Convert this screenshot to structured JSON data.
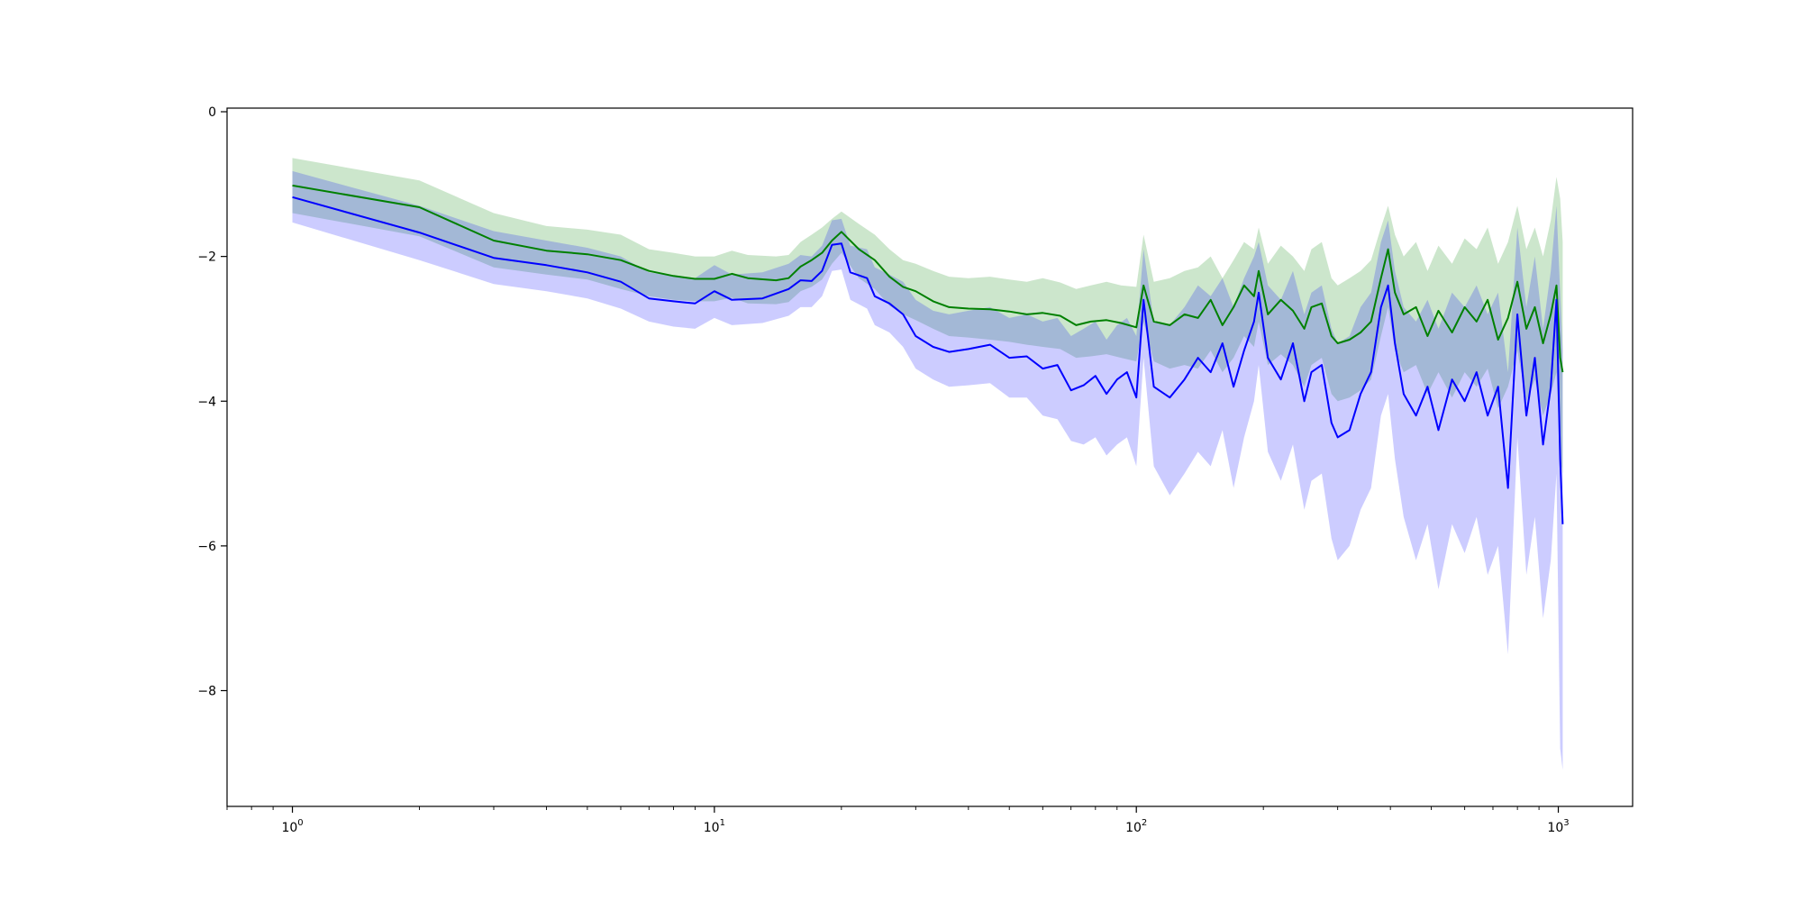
{
  "chart_data": {
    "type": "line",
    "xscale": "log",
    "xlim": [
      0.7,
      1500
    ],
    "ylim": [
      -9.6,
      0.05
    ],
    "grid": false,
    "x_ticks": [
      {
        "value": 1,
        "base": "10",
        "exp": "0"
      },
      {
        "value": 10,
        "base": "10",
        "exp": "1"
      },
      {
        "value": 100,
        "base": "10",
        "exp": "2"
      },
      {
        "value": 1000,
        "base": "10",
        "exp": "3"
      }
    ],
    "y_ticks": [
      {
        "value": 0,
        "label": "0"
      },
      {
        "value": -2,
        "label": "−2"
      },
      {
        "value": -4,
        "label": "−4"
      },
      {
        "value": -6,
        "label": "−6"
      },
      {
        "value": -8,
        "label": "−8"
      }
    ],
    "series": [
      {
        "color": "#008000",
        "band_color": "#008000",
        "band_opacity": 0.2,
        "points": [
          [
            1,
            -1.02,
            -0.64,
            -1.4
          ],
          [
            2,
            -1.32,
            -0.95,
            -1.72
          ],
          [
            3,
            -1.78,
            -1.4,
            -2.15
          ],
          [
            4,
            -1.92,
            -1.58,
            -2.25
          ],
          [
            5,
            -1.97,
            -1.63,
            -2.32
          ],
          [
            6,
            -2.05,
            -1.7,
            -2.45
          ],
          [
            7,
            -2.2,
            -1.9,
            -2.55
          ],
          [
            8,
            -2.27,
            -1.95,
            -2.6
          ],
          [
            9,
            -2.31,
            -2.0,
            -2.62
          ],
          [
            10,
            -2.31,
            -2.0,
            -2.62
          ],
          [
            11,
            -2.24,
            -1.92,
            -2.57
          ],
          [
            12,
            -2.3,
            -1.98,
            -2.65
          ],
          [
            14,
            -2.33,
            -2.0,
            -2.66
          ],
          [
            15,
            -2.3,
            -1.98,
            -2.63
          ],
          [
            16,
            -2.14,
            -1.8,
            -2.48
          ],
          [
            17,
            -2.05,
            -1.7,
            -2.42
          ],
          [
            18,
            -1.95,
            -1.6,
            -2.32
          ],
          [
            19,
            -1.78,
            -1.48,
            -2.1
          ],
          [
            20,
            -1.66,
            -1.38,
            -1.95
          ],
          [
            22,
            -1.9,
            -1.55,
            -2.3
          ],
          [
            24,
            -2.05,
            -1.7,
            -2.45
          ],
          [
            26,
            -2.28,
            -1.9,
            -2.68
          ],
          [
            28,
            -2.42,
            -2.05,
            -2.8
          ],
          [
            30,
            -2.48,
            -2.1,
            -2.88
          ],
          [
            33,
            -2.62,
            -2.2,
            -3.0
          ],
          [
            36,
            -2.7,
            -2.28,
            -3.1
          ],
          [
            40,
            -2.72,
            -2.3,
            -3.12
          ],
          [
            45,
            -2.73,
            -2.28,
            -3.15
          ],
          [
            50,
            -2.76,
            -2.32,
            -3.18
          ],
          [
            55,
            -2.8,
            -2.35,
            -3.22
          ],
          [
            60,
            -2.78,
            -2.3,
            -3.25
          ],
          [
            66,
            -2.82,
            -2.36,
            -3.28
          ],
          [
            72,
            -2.95,
            -2.45,
            -3.4
          ],
          [
            78,
            -2.9,
            -2.4,
            -3.38
          ],
          [
            85,
            -2.88,
            -2.35,
            -3.35
          ],
          [
            92,
            -2.92,
            -2.4,
            -3.4
          ],
          [
            100,
            -2.98,
            -2.42,
            -3.45
          ],
          [
            104,
            -2.4,
            -1.7,
            -2.9
          ],
          [
            110,
            -2.9,
            -2.35,
            -3.45
          ],
          [
            120,
            -2.95,
            -2.3,
            -3.55
          ],
          [
            130,
            -2.8,
            -2.2,
            -3.5
          ],
          [
            140,
            -2.85,
            -2.15,
            -3.55
          ],
          [
            150,
            -2.6,
            -2.0,
            -3.3
          ],
          [
            160,
            -2.95,
            -2.3,
            -3.6
          ],
          [
            170,
            -2.7,
            -2.05,
            -3.4
          ],
          [
            180,
            -2.4,
            -1.8,
            -3.1
          ],
          [
            190,
            -2.55,
            -1.9,
            -3.25
          ],
          [
            195,
            -2.2,
            -1.6,
            -2.9
          ],
          [
            205,
            -2.8,
            -2.1,
            -3.5
          ],
          [
            220,
            -2.6,
            -1.85,
            -3.35
          ],
          [
            235,
            -2.75,
            -2.0,
            -3.5
          ],
          [
            250,
            -3.0,
            -2.2,
            -3.8
          ],
          [
            260,
            -2.7,
            -1.9,
            -3.5
          ],
          [
            275,
            -2.65,
            -1.8,
            -3.4
          ],
          [
            290,
            -3.1,
            -2.3,
            -3.9
          ],
          [
            300,
            -3.2,
            -2.4,
            -4.0
          ],
          [
            320,
            -3.15,
            -2.3,
            -3.95
          ],
          [
            340,
            -3.05,
            -2.2,
            -3.85
          ],
          [
            360,
            -2.9,
            -2.05,
            -3.7
          ],
          [
            380,
            -2.3,
            -1.6,
            -3.1
          ],
          [
            395,
            -1.9,
            -1.3,
            -2.7
          ],
          [
            410,
            -2.5,
            -1.7,
            -3.3
          ],
          [
            430,
            -2.8,
            -2.0,
            -3.6
          ],
          [
            460,
            -2.7,
            -1.8,
            -3.5
          ],
          [
            490,
            -3.1,
            -2.2,
            -3.9
          ],
          [
            520,
            -2.75,
            -1.85,
            -3.6
          ],
          [
            560,
            -3.05,
            -2.1,
            -3.95
          ],
          [
            600,
            -2.7,
            -1.75,
            -3.6
          ],
          [
            640,
            -2.9,
            -1.9,
            -3.8
          ],
          [
            680,
            -2.6,
            -1.6,
            -3.55
          ],
          [
            720,
            -3.15,
            -2.1,
            -4.1
          ],
          [
            760,
            -2.85,
            -1.8,
            -3.8
          ],
          [
            800,
            -2.35,
            -1.3,
            -3.3
          ],
          [
            840,
            -3.0,
            -1.9,
            -4.0
          ],
          [
            880,
            -2.7,
            -1.6,
            -3.7
          ],
          [
            920,
            -3.2,
            -2.0,
            -4.2
          ],
          [
            960,
            -2.8,
            -1.5,
            -3.9
          ],
          [
            990,
            -2.4,
            -0.9,
            -3.6
          ],
          [
            1010,
            -3.4,
            -1.2,
            -4.8
          ],
          [
            1024,
            -3.6,
            -1.8,
            -5.0
          ]
        ]
      },
      {
        "color": "#0000ff",
        "band_color": "#0000ff",
        "band_opacity": 0.2,
        "points": [
          [
            1,
            -1.18,
            -0.82,
            -1.53
          ],
          [
            2,
            -1.67,
            -1.3,
            -2.05
          ],
          [
            3,
            -2.02,
            -1.65,
            -2.38
          ],
          [
            4,
            -2.12,
            -1.78,
            -2.48
          ],
          [
            5,
            -2.22,
            -1.88,
            -2.58
          ],
          [
            6,
            -2.35,
            -2.0,
            -2.72
          ],
          [
            7,
            -2.58,
            -2.22,
            -2.9
          ],
          [
            8,
            -2.62,
            -2.27,
            -2.97
          ],
          [
            9,
            -2.65,
            -2.3,
            -3.0
          ],
          [
            10,
            -2.48,
            -2.12,
            -2.85
          ],
          [
            11,
            -2.6,
            -2.25,
            -2.95
          ],
          [
            13,
            -2.58,
            -2.22,
            -2.92
          ],
          [
            15,
            -2.45,
            -2.1,
            -2.82
          ],
          [
            16,
            -2.33,
            -1.98,
            -2.7
          ],
          [
            17,
            -2.34,
            -2.0,
            -2.7
          ],
          [
            18,
            -2.2,
            -1.85,
            -2.55
          ],
          [
            19,
            -1.84,
            -1.5,
            -2.2
          ],
          [
            20,
            -1.82,
            -1.48,
            -2.18
          ],
          [
            21,
            -2.22,
            -1.85,
            -2.6
          ],
          [
            23,
            -2.3,
            -1.9,
            -2.72
          ],
          [
            24,
            -2.55,
            -2.15,
            -2.95
          ],
          [
            26,
            -2.65,
            -2.25,
            -3.05
          ],
          [
            28,
            -2.8,
            -2.35,
            -3.25
          ],
          [
            30,
            -3.1,
            -2.6,
            -3.55
          ],
          [
            33,
            -3.25,
            -2.75,
            -3.7
          ],
          [
            36,
            -3.32,
            -2.8,
            -3.8
          ],
          [
            40,
            -3.28,
            -2.75,
            -3.78
          ],
          [
            45,
            -3.22,
            -2.7,
            -3.75
          ],
          [
            50,
            -3.4,
            -2.85,
            -3.95
          ],
          [
            55,
            -3.38,
            -2.8,
            -3.95
          ],
          [
            60,
            -3.55,
            -2.9,
            -4.2
          ],
          [
            65,
            -3.5,
            -2.85,
            -4.25
          ],
          [
            70,
            -3.85,
            -3.1,
            -4.55
          ],
          [
            75,
            -3.78,
            -3.0,
            -4.6
          ],
          [
            80,
            -3.65,
            -2.9,
            -4.5
          ],
          [
            85,
            -3.9,
            -3.15,
            -4.75
          ],
          [
            90,
            -3.7,
            -2.95,
            -4.6
          ],
          [
            95,
            -3.6,
            -2.85,
            -4.5
          ],
          [
            100,
            -3.95,
            -3.1,
            -4.9
          ],
          [
            104,
            -2.6,
            -1.9,
            -3.4
          ],
          [
            110,
            -3.8,
            -2.9,
            -4.9
          ],
          [
            120,
            -3.95,
            -2.95,
            -5.3
          ],
          [
            130,
            -3.7,
            -2.7,
            -5.0
          ],
          [
            140,
            -3.4,
            -2.4,
            -4.7
          ],
          [
            150,
            -3.6,
            -2.55,
            -4.9
          ],
          [
            160,
            -3.2,
            -2.3,
            -4.4
          ],
          [
            170,
            -3.8,
            -2.7,
            -5.2
          ],
          [
            180,
            -3.3,
            -2.3,
            -4.5
          ],
          [
            190,
            -2.9,
            -2.0,
            -4.0
          ],
          [
            195,
            -2.5,
            -1.8,
            -3.5
          ],
          [
            205,
            -3.4,
            -2.4,
            -4.7
          ],
          [
            220,
            -3.7,
            -2.6,
            -5.1
          ],
          [
            235,
            -3.2,
            -2.2,
            -4.6
          ],
          [
            250,
            -4.0,
            -2.8,
            -5.5
          ],
          [
            260,
            -3.6,
            -2.5,
            -5.1
          ],
          [
            275,
            -3.5,
            -2.4,
            -5.0
          ],
          [
            290,
            -4.3,
            -3.0,
            -5.9
          ],
          [
            300,
            -4.5,
            -3.2,
            -6.2
          ],
          [
            320,
            -4.4,
            -3.1,
            -6.0
          ],
          [
            340,
            -3.9,
            -2.7,
            -5.5
          ],
          [
            360,
            -3.6,
            -2.5,
            -5.2
          ],
          [
            380,
            -2.7,
            -1.8,
            -4.2
          ],
          [
            395,
            -2.4,
            -1.5,
            -3.9
          ],
          [
            410,
            -3.2,
            -2.2,
            -4.8
          ],
          [
            430,
            -3.9,
            -2.7,
            -5.6
          ],
          [
            460,
            -4.2,
            -2.9,
            -6.2
          ],
          [
            490,
            -3.8,
            -2.6,
            -5.7
          ],
          [
            520,
            -4.4,
            -3.0,
            -6.6
          ],
          [
            560,
            -3.7,
            -2.5,
            -5.7
          ],
          [
            600,
            -4.0,
            -2.7,
            -6.1
          ],
          [
            640,
            -3.6,
            -2.4,
            -5.6
          ],
          [
            680,
            -4.2,
            -2.8,
            -6.4
          ],
          [
            720,
            -3.8,
            -2.5,
            -6.0
          ],
          [
            760,
            -5.2,
            -3.6,
            -7.5
          ],
          [
            800,
            -2.8,
            -1.6,
            -4.5
          ],
          [
            840,
            -4.2,
            -2.7,
            -6.4
          ],
          [
            880,
            -3.4,
            -2.0,
            -5.6
          ],
          [
            920,
            -4.6,
            -3.0,
            -7.0
          ],
          [
            960,
            -3.8,
            -2.2,
            -6.2
          ],
          [
            990,
            -2.6,
            -1.3,
            -5.0
          ],
          [
            1010,
            -4.8,
            -2.5,
            -8.8
          ],
          [
            1024,
            -5.7,
            -3.3,
            -9.1
          ]
        ]
      }
    ]
  }
}
